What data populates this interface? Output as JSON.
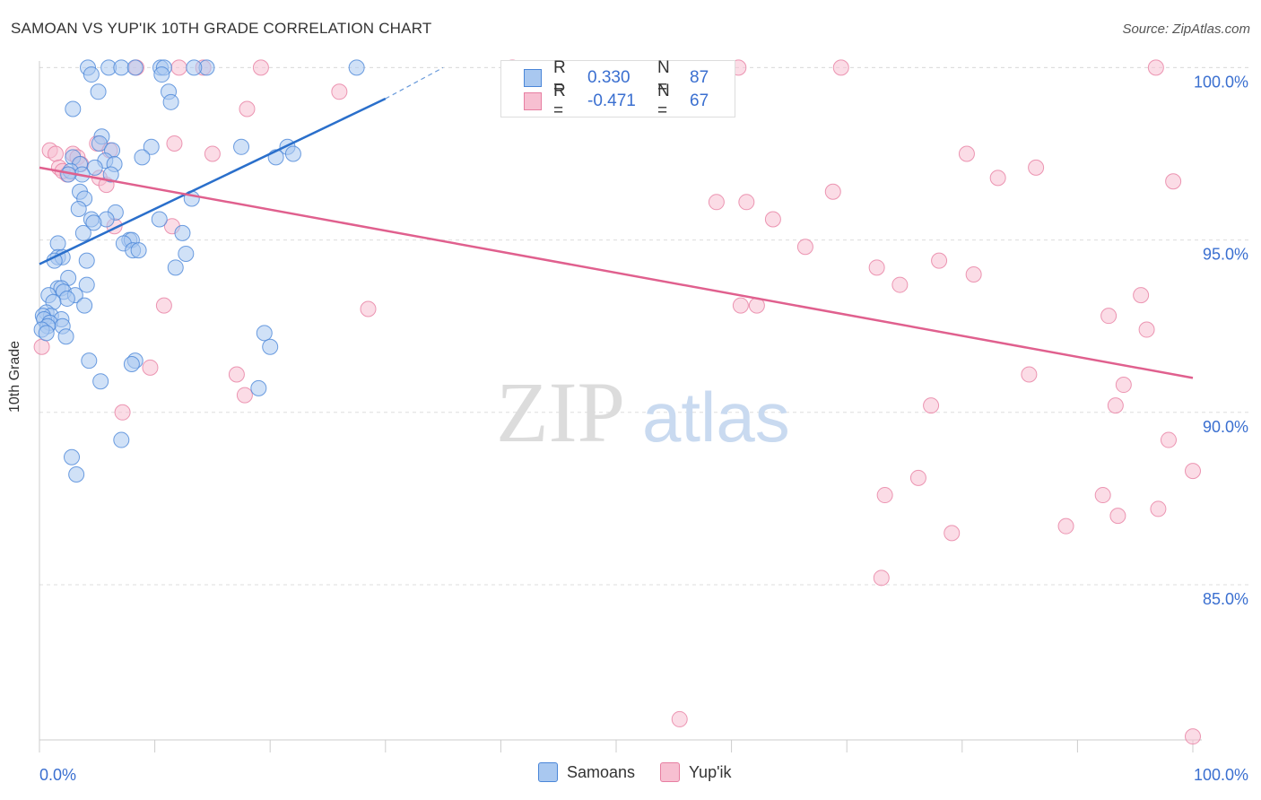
{
  "header": {
    "title": "SAMOAN VS YUP'IK 10TH GRADE CORRELATION CHART",
    "source": "Source: ZipAtlas.com"
  },
  "watermark": {
    "zip": "ZIP",
    "atlas": "atlas"
  },
  "legend": {
    "samoans": {
      "r_label": "R =",
      "r_value": "0.330",
      "n_label": "N =",
      "n_value": "87"
    },
    "yupik": {
      "r_label": "R =",
      "r_value": "-0.471",
      "n_label": "N =",
      "n_value": "67"
    }
  },
  "bottom_legend": [
    "Samoans",
    "Yup'ik"
  ],
  "colors": {
    "samoans_fill": "#a9c8f0",
    "samoans_stroke": "#4a86d8",
    "samoans_line": "#2a6fcb",
    "yupik_fill": "#f7bfd1",
    "yupik_stroke": "#e77ea1",
    "yupik_line": "#e0608e",
    "tick_label": "#3a6fd0",
    "grid": "#dddddd"
  },
  "chart_data": {
    "type": "scatter",
    "title": "SAMOAN VS YUP'IK 10TH GRADE CORRELATION CHART",
    "xlabel": "",
    "ylabel": "10th Grade",
    "xlim": [
      0,
      100
    ],
    "ylim": [
      80.5,
      100.4
    ],
    "x_tick_labels": [
      "0.0%",
      "100.0%"
    ],
    "y_ticks": [
      85,
      90,
      95,
      100
    ],
    "y_tick_labels": [
      "85.0%",
      "90.0%",
      "95.0%",
      "100.0%"
    ],
    "series": [
      {
        "name": "Samoans",
        "r": 0.33,
        "n": 87,
        "trend": {
          "x": [
            0,
            30
          ],
          "y": [
            94.3,
            99.1
          ],
          "dashed_to": [
            35,
            100.0
          ]
        },
        "points": [
          [
            4.2,
            100
          ],
          [
            6.0,
            100
          ],
          [
            7.1,
            100
          ],
          [
            8.3,
            100
          ],
          [
            10.5,
            100
          ],
          [
            10.8,
            100
          ],
          [
            14.5,
            100
          ],
          [
            27.5,
            100
          ],
          [
            4.5,
            99.8
          ],
          [
            10.6,
            99.8
          ],
          [
            5.1,
            99.3
          ],
          [
            11.2,
            99.3
          ],
          [
            11.4,
            99.0
          ],
          [
            2.9,
            98.8
          ],
          [
            5.4,
            98.0
          ],
          [
            5.2,
            97.8
          ],
          [
            9.7,
            97.7
          ],
          [
            17.5,
            97.7
          ],
          [
            21.5,
            97.7
          ],
          [
            6.3,
            97.6
          ],
          [
            22.0,
            97.5
          ],
          [
            8.9,
            97.4
          ],
          [
            20.5,
            97.4
          ],
          [
            2.9,
            97.4
          ],
          [
            5.7,
            97.3
          ],
          [
            3.5,
            97.2
          ],
          [
            6.5,
            97.2
          ],
          [
            4.8,
            97.1
          ],
          [
            2.7,
            97.0
          ],
          [
            3.7,
            96.9
          ],
          [
            2.5,
            96.9
          ],
          [
            6.2,
            96.9
          ],
          [
            3.5,
            96.4
          ],
          [
            3.9,
            96.2
          ],
          [
            13.2,
            96.2
          ],
          [
            3.4,
            95.9
          ],
          [
            6.6,
            95.8
          ],
          [
            4.5,
            95.6
          ],
          [
            5.8,
            95.6
          ],
          [
            10.4,
            95.6
          ],
          [
            4.7,
            95.5
          ],
          [
            3.8,
            95.2
          ],
          [
            12.4,
            95.2
          ],
          [
            7.8,
            95.0
          ],
          [
            8.0,
            95.0
          ],
          [
            7.3,
            94.9
          ],
          [
            1.6,
            94.9
          ],
          [
            8.1,
            94.7
          ],
          [
            8.6,
            94.7
          ],
          [
            12.7,
            94.6
          ],
          [
            1.6,
            94.5
          ],
          [
            2.0,
            94.5
          ],
          [
            1.3,
            94.4
          ],
          [
            4.1,
            94.4
          ],
          [
            11.8,
            94.2
          ],
          [
            2.5,
            93.9
          ],
          [
            4.1,
            93.7
          ],
          [
            1.6,
            93.6
          ],
          [
            1.9,
            93.6
          ],
          [
            2.1,
            93.5
          ],
          [
            0.8,
            93.4
          ],
          [
            3.1,
            93.4
          ],
          [
            2.4,
            93.3
          ],
          [
            1.2,
            93.2
          ],
          [
            3.9,
            93.1
          ],
          [
            0.6,
            92.9
          ],
          [
            1.0,
            92.8
          ],
          [
            0.3,
            92.8
          ],
          [
            0.4,
            92.7
          ],
          [
            1.9,
            92.7
          ],
          [
            0.9,
            92.6
          ],
          [
            0.7,
            92.5
          ],
          [
            2.0,
            92.5
          ],
          [
            0.2,
            92.4
          ],
          [
            0.6,
            92.3
          ],
          [
            2.3,
            92.2
          ],
          [
            19.5,
            92.3
          ],
          [
            20.0,
            91.9
          ],
          [
            4.3,
            91.5
          ],
          [
            8.3,
            91.5
          ],
          [
            8.0,
            91.4
          ],
          [
            5.3,
            90.9
          ],
          [
            19.0,
            90.7
          ],
          [
            7.1,
            89.2
          ],
          [
            2.8,
            88.7
          ],
          [
            3.2,
            88.2
          ],
          [
            13.4,
            100.0
          ]
        ]
      },
      {
        "name": "Yup'ik",
        "r": -0.471,
        "n": 67,
        "trend": {
          "x": [
            0,
            100
          ],
          "y": [
            97.1,
            91.0
          ]
        },
        "points": [
          [
            8.4,
            100
          ],
          [
            12.1,
            100
          ],
          [
            14.2,
            100
          ],
          [
            19.2,
            100
          ],
          [
            41.0,
            100
          ],
          [
            60.6,
            100
          ],
          [
            69.5,
            100
          ],
          [
            96.8,
            100
          ],
          [
            26.0,
            99.3
          ],
          [
            18.0,
            98.8
          ],
          [
            11.7,
            97.8
          ],
          [
            5.0,
            97.8
          ],
          [
            0.9,
            97.6
          ],
          [
            1.4,
            97.5
          ],
          [
            2.9,
            97.5
          ],
          [
            15.0,
            97.5
          ],
          [
            6.1,
            97.6
          ],
          [
            80.4,
            97.5
          ],
          [
            3.3,
            97.4
          ],
          [
            1.7,
            97.1
          ],
          [
            86.4,
            97.1
          ],
          [
            2.4,
            96.9
          ],
          [
            5.2,
            96.8
          ],
          [
            83.1,
            96.8
          ],
          [
            98.3,
            96.7
          ],
          [
            5.8,
            96.6
          ],
          [
            68.8,
            96.4
          ],
          [
            58.7,
            96.1
          ],
          [
            61.3,
            96.1
          ],
          [
            63.6,
            95.6
          ],
          [
            11.5,
            95.4
          ],
          [
            6.5,
            95.4
          ],
          [
            66.4,
            94.8
          ],
          [
            78.0,
            94.4
          ],
          [
            72.6,
            94.2
          ],
          [
            81.0,
            94.0
          ],
          [
            74.6,
            93.7
          ],
          [
            95.5,
            93.4
          ],
          [
            60.8,
            93.1
          ],
          [
            62.2,
            93.1
          ],
          [
            10.8,
            93.1
          ],
          [
            28.5,
            93.0
          ],
          [
            92.7,
            92.8
          ],
          [
            96.0,
            92.4
          ],
          [
            0.2,
            91.9
          ],
          [
            9.6,
            91.3
          ],
          [
            17.1,
            91.1
          ],
          [
            85.8,
            91.1
          ],
          [
            94.0,
            90.8
          ],
          [
            17.8,
            90.5
          ],
          [
            77.3,
            90.2
          ],
          [
            93.3,
            90.2
          ],
          [
            7.2,
            90.0
          ],
          [
            97.9,
            89.2
          ],
          [
            100.0,
            88.3
          ],
          [
            76.2,
            88.1
          ],
          [
            73.3,
            87.6
          ],
          [
            92.2,
            87.6
          ],
          [
            97.0,
            87.2
          ],
          [
            93.5,
            87.0
          ],
          [
            89.0,
            86.7
          ],
          [
            79.1,
            86.5
          ],
          [
            73.0,
            85.2
          ],
          [
            55.5,
            81.1
          ],
          [
            100.0,
            80.6
          ],
          [
            3.6,
            97.2
          ],
          [
            2.0,
            97.0
          ]
        ]
      }
    ]
  }
}
